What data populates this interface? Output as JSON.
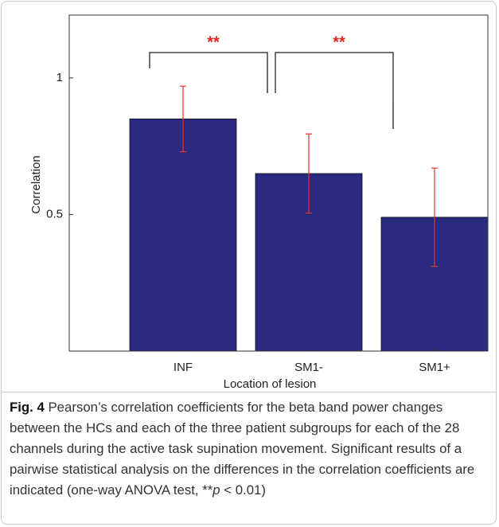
{
  "chart_data": {
    "type": "bar",
    "categories": [
      "INF",
      "SM1-",
      "SM1+"
    ],
    "values": [
      0.85,
      0.65,
      0.49
    ],
    "errors": [
      0.12,
      0.145,
      0.18
    ],
    "color": "#2a2a80",
    "error_color": "#e8302a",
    "ylim": [
      0,
      1.23
    ],
    "yticks": [
      0.5,
      1
    ],
    "y_label": "Correlation",
    "x_label": "Location of lesion",
    "annotations": [
      {
        "text": "**"
      },
      {
        "text": "**"
      }
    ],
    "annotation_color": "#e0241e"
  },
  "caption": {
    "label": "Fig. 4",
    "text_before": " Pearson’s correlation coefficients for the beta band power changes between the HCs and each of the three patient subgroups for each of the 28 channels during the active task supination movement. Significant results of a pairwise statistical analysis on the differences in the correlation coefficients are indicated (one-way ANOVA test, **",
    "italic": "p",
    "text_after": " < 0.01)"
  }
}
